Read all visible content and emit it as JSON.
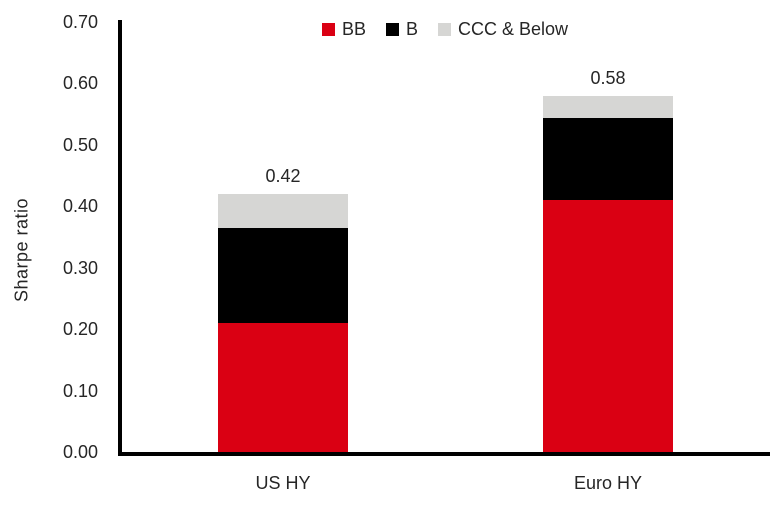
{
  "chart_data": {
    "type": "bar",
    "stacked": true,
    "title": "",
    "ylabel": "Sharpe ratio",
    "xlabel": "",
    "categories": [
      "US HY",
      "Euro HY"
    ],
    "series": [
      {
        "name": "BB",
        "color": "#DA0013",
        "values": [
          0.21,
          0.41
        ]
      },
      {
        "name": "B",
        "color": "#000000",
        "values": [
          0.155,
          0.135
        ]
      },
      {
        "name": "CCC & Below",
        "color": "#D6D6D4",
        "values": [
          0.055,
          0.035
        ]
      }
    ],
    "totals": [
      0.42,
      0.58
    ],
    "total_labels": [
      "0.42",
      "0.58"
    ],
    "ylim": [
      0,
      0.7
    ],
    "ytick_values": [
      0.0,
      0.1,
      0.2,
      0.3,
      0.4,
      0.5,
      0.6,
      0.7
    ],
    "ytick_labels": [
      "0.00",
      "0.10",
      "0.20",
      "0.30",
      "0.40",
      "0.50",
      "0.60",
      "0.70"
    ],
    "legend_position": "top-center",
    "grid": false,
    "axis_color": "#000000",
    "text_color": "#262626",
    "background_color": "#FFFFFF"
  }
}
